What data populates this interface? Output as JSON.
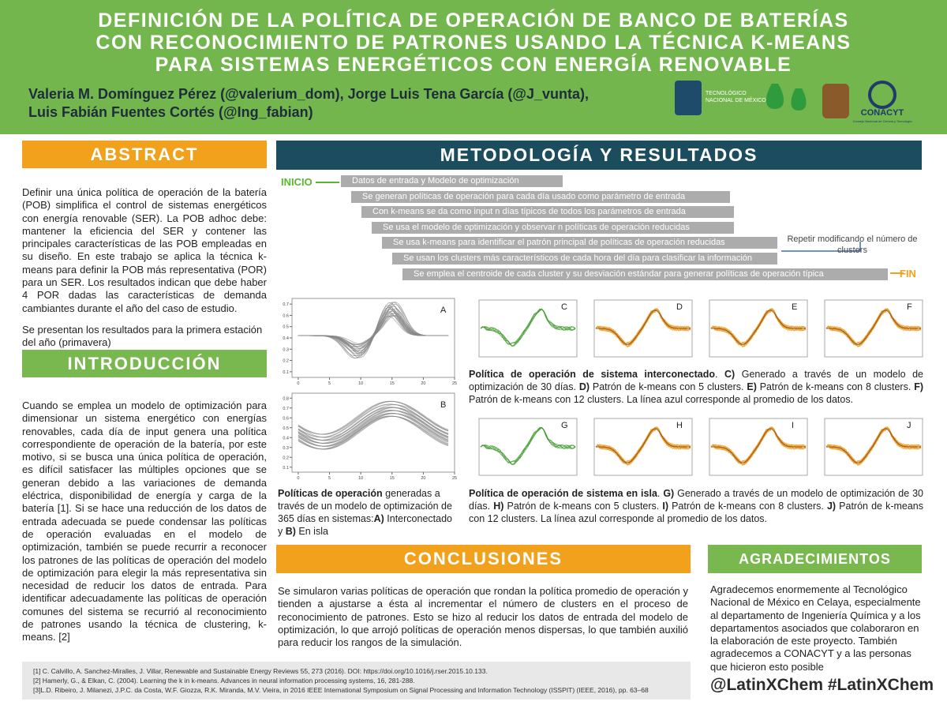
{
  "header": {
    "title": [
      "DEFINICIÓN DE LA POLÍTICA DE OPERACIÓN DE BANCO DE BATERÍAS",
      "CON RECONOCIMIENTO DE PATRONES USANDO LA TÉCNICA K-MEANS",
      "PARA SISTEMAS ENERGÉTICOS CON ENERGÍA RENOVABLE"
    ],
    "authors": [
      "Valeria M. Domínguez Pérez (@valerium_dom),  Jorge Luis Tena García (@J_vunta),",
      "Luis Fabián Fuentes Cortés (@Ing_fabian)"
    ],
    "logos": {
      "tecnm": [
        "TECNOLÓGICO",
        "NACIONAL DE MÉXICO"
      ],
      "conacyt": "CONACYT",
      "conacyt_sub": "Consejo Nacional de Ciencia y Tecnología"
    }
  },
  "abstract": {
    "heading": "ABSTRACT",
    "text": "Definir una única política de operación de la batería (POB) simplifica el control de sistemas energéticos con energía renovable (SER). La POB adhoc debe: mantener la eficiencia del SER y contener las principales características de las POB empleadas en su diseño. En este trabajo se aplica la técnica k-means para definir la POB más representativa (POR) para un SER. Los resultados indican que debe haber 4 POR dadas las características de demanda cambiantes durante el año del caso de estudio.",
    "note": "Se presentan los resultados para la primera estación del año (primavera)"
  },
  "introduction": {
    "heading": "INTRODUCCIÓN",
    "text": "Cuando se emplea un modelo de optimización para dimensionar un sistema energético con energías renovables, cada día de input genera una política correspondiente de operación de la batería, por este motivo, si se busca una única política de operación, es difícil satisfacer las múltiples opciones que se generan debido a las variaciones de demanda eléctrica, disponibilidad de energía y carga de la batería [1]. Si se hace una reducción de los datos de entrada adecuada se puede condensar las políticas de operación evaluadas en el modelo de optimización, también se puede recurrir a reconocer los patrones de las políticas de operación del modelo de optimización para elegir la más representativa sin necesidad de reducir los datos de entrada. Para identificar adecuadamente las políticas de operación comunes del sistema se recurrió al reconocimiento de patrones usando la técnica de clustering, k-means. [2]"
  },
  "methodology": {
    "heading": "METODOLOGÍA Y RESULTADOS",
    "start": "INICIO",
    "end": "FIN",
    "steps": [
      "Datos de entrada y Modelo de optimización",
      "Se generan políticas de operación para cada día usado como parámetro de entrada",
      "Con k-means se da como input n días típicos de todos los parámetros de entrada",
      "Se usa el modelo de optimización y observar n políticas de operación reducidas",
      "Se usa k-means para identificar el patrón principal de políticas de operación reducidas",
      "Se usan los clusters más característicos de cada hora del día para clasificar la información",
      "Se emplea el centroide de cada cluster y su desviación estándar para generar políticas de operación típica"
    ],
    "loop_note": "Repetir modificando el número de clusters",
    "plots": [
      {
        "letter": "A",
        "ylim": [
          0.05,
          0.75
        ],
        "yticks": [
          0.1,
          0.2,
          0.3,
          0.4,
          0.5,
          0.6,
          0.7
        ],
        "xlim": [
          -1,
          25
        ],
        "xticks": [
          0,
          5,
          10,
          15,
          20,
          25
        ]
      },
      {
        "letter": "B",
        "ylim": [
          0.05,
          0.85
        ],
        "yticks": [
          0.1,
          0.2,
          0.3,
          0.4,
          0.5,
          0.6,
          0.7,
          0.8
        ],
        "xlim": [
          -1,
          25
        ],
        "xticks": [
          0,
          5,
          10,
          15,
          20,
          25
        ]
      }
    ],
    "panels_top": [
      "C",
      "D",
      "E",
      "F"
    ],
    "panels_bottom": [
      "G",
      "H",
      "I",
      "J"
    ],
    "caption_ab": [
      {
        "text": "Políticas de operación",
        "b": true
      },
      {
        "text": " generadas a través de un modelo de optimización de 365 días en sistemas:",
        "b": false
      },
      {
        "text": "A)",
        "b": true
      },
      {
        "text": " Interconectado y ",
        "b": false
      },
      {
        "text": "B)",
        "b": true
      },
      {
        "text": " En isla",
        "b": false
      }
    ],
    "caption_cf": [
      {
        "text": "Política de operación de sistema interconectado",
        "b": true
      },
      {
        "text": ". ",
        "b": false
      },
      {
        "text": "C)",
        "b": true
      },
      {
        "text": " Generado a través de un modelo de optimización de 30 días. ",
        "b": false
      },
      {
        "text": "D)",
        "b": true
      },
      {
        "text": " Patrón de k-means con 5 clusters. ",
        "b": false
      },
      {
        "text": "E)",
        "b": true
      },
      {
        "text": " Patrón de k-means con 8 clusters. ",
        "b": false
      },
      {
        "text": "F)",
        "b": true
      },
      {
        "text": " Patrón de k-means con 12 clusters. La línea azul corresponde al promedio de los datos.",
        "b": false
      }
    ],
    "caption_gj": [
      {
        "text": "Política de operación de sistema en isla",
        "b": true
      },
      {
        "text": ". ",
        "b": false
      },
      {
        "text": "G)",
        "b": true
      },
      {
        "text": " Generado a través de un modelo de optimización de 30 días. ",
        "b": false
      },
      {
        "text": "H)",
        "b": true
      },
      {
        "text": " Patrón de k-means con 5 clusters. ",
        "b": false
      },
      {
        "text": "I)",
        "b": true
      },
      {
        "text": " Patrón de k-means con 8 clusters. ",
        "b": false
      },
      {
        "text": "J)",
        "b": true
      },
      {
        "text": " Patrón de k-means con 12 clusters. La línea azul corresponde al promedio de los datos.",
        "b": false
      }
    ]
  },
  "conclusions": {
    "heading": "CONCLUSIONES",
    "text": "Se simularon varias políticas de operación que rondan la política promedio de operación y tienden a ajustarse a ésta al incrementar el número de clusters en el proceso de reconocimiento de patrones. Esto se hizo al reducir los datos de entrada del modelo de optimización, lo que arrojó políticas de operación menos dispersas, lo que también auxilió para reducir los rangos de la simulación."
  },
  "references": [
    "[1] C. Calvillo, A. Sanchez-Miralles, J. Villar, Renewable and Sustainable Energy Reviews 55, 273 (2016). DOI: https://doi.org/10.1016/j.rser.2015.10.133.",
    "[2] Hamerly, G., & Elkan, C. (2004). Learning the k in k-means. Advances in neural information processing systems, 16, 281-288.",
    "[3]L.D. Ribeiro, J. Milanezi, J.P.C. da Costa, W.F. Giozza, R.K. Miranda, M.V. Vieira, in 2016 IEEE International Symposium on Signal Processing and Information Technology (ISSPIT) (IEEE, 2016), pp. 63–68"
  ],
  "acknowledgements": {
    "heading": "AGRADECIMIENTOS",
    "text": "Agradecemos enormemente al Tecnológico Nacional de México en Celaya, especialmente al departamento de Ingeniería Química y a los departamentos asociados que colaboraron en la elaboración de este proyecto. También agradecemos a CONACYT y a las personas que hicieron esto posible",
    "hashtags": "@LatinXChem #LatinXChem"
  }
}
